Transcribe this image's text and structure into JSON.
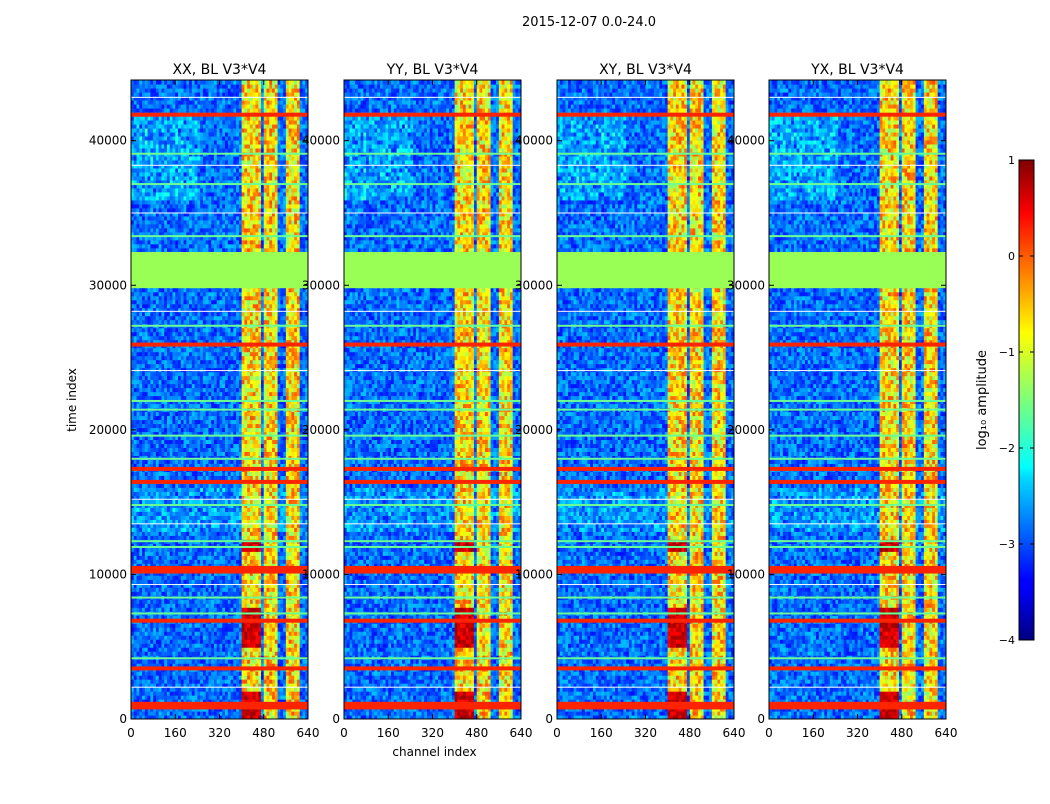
{
  "chart_data": {
    "type": "heatmap",
    "suptitle": "2015-12-07 0.0-24.0",
    "panels": [
      {
        "title": "XX, BL V3*V4",
        "show_ylabel": true,
        "show_xlabel": false
      },
      {
        "title": "YY, BL V3*V4",
        "show_ylabel": false,
        "show_xlabel": true
      },
      {
        "title": "XY, BL V3*V4",
        "show_ylabel": false,
        "show_xlabel": false
      },
      {
        "title": "YX, BL V3*V4",
        "show_ylabel": false,
        "show_xlabel": false
      }
    ],
    "xlabel": "channel index",
    "ylabel": "time index",
    "xlim": [
      0,
      640
    ],
    "ylim": [
      0,
      44200
    ],
    "xticks": [
      0,
      160,
      320,
      480,
      640
    ],
    "yticks": [
      0,
      10000,
      20000,
      30000,
      40000
    ],
    "colorbar": {
      "label": "log₁₀ amplitude",
      "vmin": -4,
      "vmax": 1,
      "ticks": [
        -4,
        -3,
        -2,
        -1,
        0,
        1
      ],
      "tick_labels": [
        "−4",
        "−3",
        "−2",
        "−1",
        "0",
        "1"
      ]
    },
    "flagged_band": {
      "time_start": 29800,
      "time_end": 32300,
      "value": -1.2
    },
    "strong_time_rows": [
      800,
      1050,
      3500,
      6800,
      10200,
      10450,
      16400,
      17300,
      25900,
      41800
    ],
    "medium_time_rows": [
      4200,
      7300,
      8400,
      11900,
      12300,
      14800,
      18000,
      19600,
      21400,
      22000,
      27200,
      33400,
      37000,
      39100
    ],
    "rfi_channel_bands": [
      [
        400,
        445
      ],
      [
        450,
        470
      ],
      [
        480,
        530
      ],
      [
        560,
        605
      ]
    ],
    "colors": {
      "flagged": "#99ff55",
      "background_low": "#0022dd",
      "panel_border": "#000000"
    }
  }
}
